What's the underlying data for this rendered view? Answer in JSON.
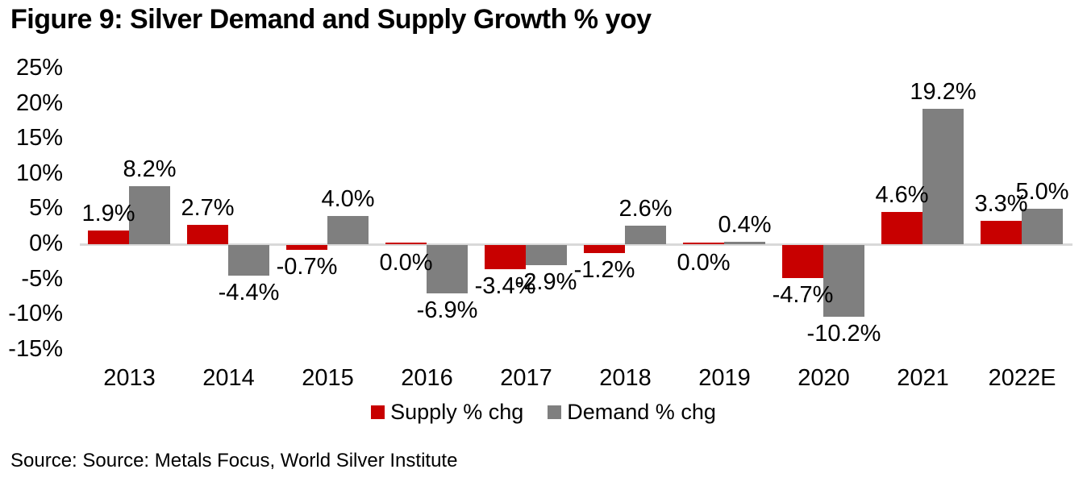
{
  "title": "Figure 9: Silver Demand and Supply Growth % yoy",
  "source_line": "Source: Source: Metals Focus, World Silver Institute",
  "colors": {
    "supply": "#c80000",
    "demand": "#7f7f7f",
    "axis_line": "#d9d9d9",
    "text": "#000000"
  },
  "chart_data": {
    "type": "bar",
    "title": "Figure 9: Silver Demand and Supply Growth % yoy",
    "categories": [
      "2013",
      "2014",
      "2015",
      "2016",
      "2017",
      "2018",
      "2019",
      "2020",
      "2021",
      "2022E"
    ],
    "series": [
      {
        "key": "supply",
        "name": "Supply % chg",
        "color": "#c80000",
        "values": [
          1.9,
          2.7,
          -0.7,
          0.0,
          -3.4,
          -1.2,
          0.0,
          -4.7,
          4.6,
          3.3
        ],
        "labels": [
          "1.9%",
          "2.7%",
          "-0.7%",
          "0.0%",
          "-3.4%",
          "-1.2%",
          "0.0%",
          "-4.7%",
          "4.6%",
          "3.3%"
        ]
      },
      {
        "key": "demand",
        "name": "Demand % chg",
        "color": "#7f7f7f",
        "values": [
          8.2,
          -4.4,
          4.0,
          -6.9,
          -2.9,
          2.6,
          0.4,
          -10.2,
          19.2,
          5.0
        ],
        "labels": [
          "8.2%",
          "-4.4%",
          "4.0%",
          "-6.9%",
          "-2.9%",
          "2.6%",
          "0.4%",
          "-10.2%",
          "19.2%",
          "5.0%"
        ]
      }
    ],
    "y_ticks": [
      {
        "value": 25,
        "label": "25%"
      },
      {
        "value": 20,
        "label": "20%"
      },
      {
        "value": 15,
        "label": "15%"
      },
      {
        "value": 10,
        "label": "10%"
      },
      {
        "value": 5,
        "label": "5%"
      },
      {
        "value": 0,
        "label": "0%"
      },
      {
        "value": -5,
        "label": "-5%"
      },
      {
        "value": -10,
        "label": "-10%"
      },
      {
        "value": -15,
        "label": "-15%"
      }
    ],
    "ylim": [
      -15,
      25
    ],
    "grid": false,
    "legend_position": "bottom",
    "legend": [
      "Supply % chg",
      "Demand % chg"
    ]
  }
}
